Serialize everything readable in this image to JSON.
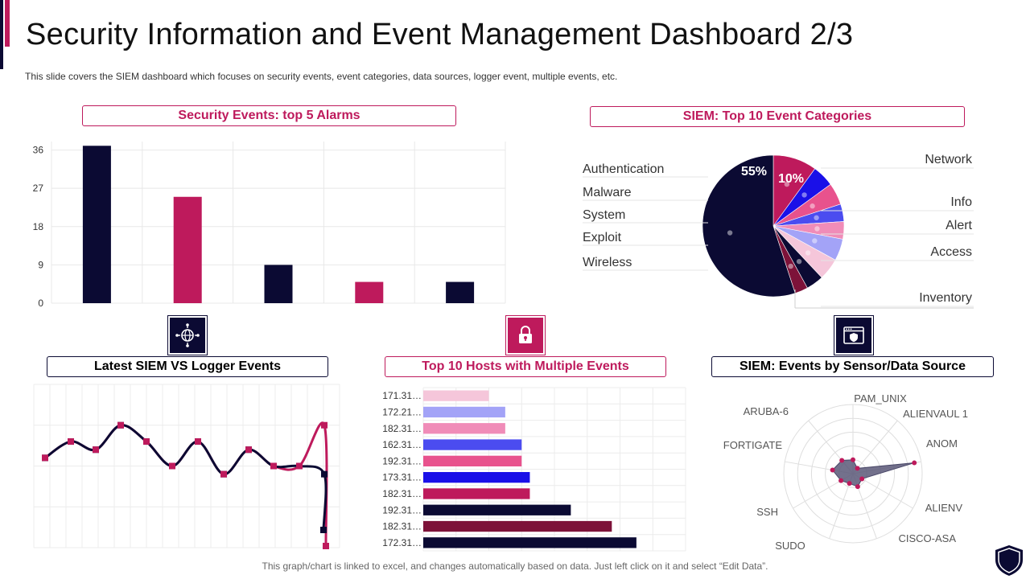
{
  "page": {
    "title": "Security Information and Event Management Dashboard 2/3",
    "subtitle": "This slide covers the SIEM dashboard which focuses on security events, event categories, data sources, logger event, multiple events, etc.",
    "footer": "This graph/chart is linked to excel, and changes automatically based on data. Just left click on it and select “Edit Data”.",
    "colors": {
      "navy": "#0b0a33",
      "magenta": "#be1a5c"
    }
  },
  "icons": {
    "network": "globe-network-icon",
    "lock": "padlock-icon",
    "browser_shield": "browser-shield-icon",
    "corner_logo": "shield-logo-icon"
  },
  "chart_data": [
    {
      "id": "alarms",
      "type": "bar",
      "title": "Security Events: top 5 Alarms",
      "categories": [
        "",
        "",
        "",
        "",
        ""
      ],
      "values": [
        37,
        25,
        9,
        5,
        5
      ],
      "colors": [
        "#0b0a33",
        "#be1a5c",
        "#0b0a33",
        "#be1a5c",
        "#0b0a33"
      ],
      "yticks": [
        0,
        9,
        18,
        27,
        36
      ],
      "ylim": [
        0,
        38
      ],
      "grid": true
    },
    {
      "id": "categories",
      "type": "pie",
      "title": "SIEM: Top 10 Event Categories",
      "slices": [
        {
          "label": "Network",
          "value": 10,
          "color": "#be1a5c",
          "shown": "10%"
        },
        {
          "label": "Info",
          "value": 5,
          "color": "#1a10e8",
          "shown": ""
        },
        {
          "label": "Alert",
          "value": 5,
          "color": "#e8528d",
          "shown": ""
        },
        {
          "label": "Alert",
          "value": 4,
          "color": "#4b4cf0",
          "shown": ""
        },
        {
          "label": "Access",
          "value": 4,
          "color": "#f08cb8",
          "shown": ""
        },
        {
          "label": "Access",
          "value": 5,
          "color": "#a3a3f7",
          "shown": ""
        },
        {
          "label": "Inventory",
          "value": 5,
          "color": "#f5c6da",
          "shown": ""
        },
        {
          "label": "",
          "value": 4,
          "color": "#0b0a33",
          "shown": ""
        },
        {
          "label": "",
          "value": 3,
          "color": "#7d1239",
          "shown": ""
        },
        {
          "label": "Authentication",
          "value": 55,
          "color": "#0b0a33",
          "shown": "55%"
        }
      ],
      "left_labels": [
        "Authentication",
        "Malware",
        "System",
        "Exploit",
        "Wireless"
      ],
      "right_labels": [
        "Network",
        "Info",
        "Alert",
        "Access",
        "Inventory"
      ]
    },
    {
      "id": "logger",
      "type": "line",
      "title": "Latest SIEM VS Logger Events",
      "x": [
        1,
        2,
        3,
        4,
        5,
        6,
        7,
        8,
        9,
        10,
        11,
        12,
        13,
        14,
        15,
        16,
        17,
        18
      ],
      "series": [
        {
          "values": [
            55,
            65,
            60,
            75,
            65,
            50,
            65,
            45,
            60,
            50,
            50,
            75,
            10,
            10,
            10,
            10,
            10,
            10
          ],
          "color": "#be1a5c"
        },
        {
          "values": [
            55,
            65,
            60,
            75,
            65,
            50,
            65,
            45,
            60,
            50,
            50,
            45,
            10,
            10,
            10,
            10,
            10,
            10
          ],
          "color": "#0b0a33"
        }
      ],
      "ylim": [
        0,
        100
      ],
      "grid": true
    },
    {
      "id": "hosts",
      "type": "bar",
      "orientation": "horizontal",
      "title": "Top 10 Hosts with Multiple Events",
      "categories": [
        "171.31…",
        "172.21…",
        "182.31…",
        "162.31…",
        "192.31…",
        "173.31…",
        "182.31…",
        "192.31…",
        "182.31…",
        "172.31…"
      ],
      "values": [
        8,
        10,
        10,
        12,
        12,
        13,
        13,
        18,
        23,
        26
      ],
      "colors": [
        "#f5c6da",
        "#a3a3f7",
        "#f08cb8",
        "#4b4cf0",
        "#e8528d",
        "#1a10e8",
        "#be1a5c",
        "#0b0a33",
        "#7d1239",
        "#0b0a33"
      ],
      "xlim": [
        0,
        32
      ],
      "grid": true
    },
    {
      "id": "sensors",
      "type": "radar",
      "title": "SIEM: Events by Sensor/Data Source",
      "axes": [
        "PAM_UNIX",
        "ALIENVAUL 1",
        "ANOM",
        "ALIENV",
        "CISCO-ASA",
        "SUDO",
        "SSH",
        "FORTIGATE",
        "ARUBA-6"
      ],
      "values": [
        20,
        10,
        90,
        15,
        20,
        15,
        20,
        30,
        25
      ],
      "max": 100,
      "rings": 5,
      "fill": "#5a5878",
      "point_color": "#be1a5c"
    }
  ]
}
